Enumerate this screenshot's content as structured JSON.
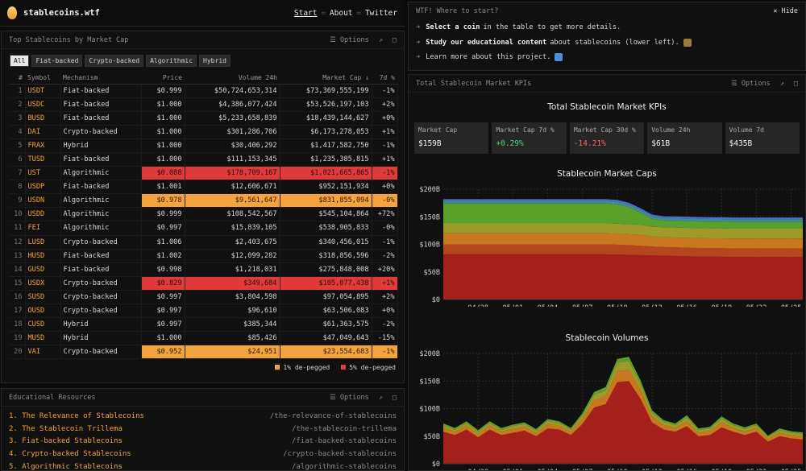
{
  "header": {
    "site": "stablecoins.wtf",
    "nav": [
      "Start",
      "About",
      "Twitter"
    ]
  },
  "table_pane": {
    "title": "Top Stablecoins by Market Cap",
    "options": "Options",
    "filters": [
      "All",
      "Fiat-backed",
      "Crypto-backed",
      "Algorithmic",
      "Hybrid"
    ],
    "columns": [
      "#",
      "Symbol",
      "Mechanism",
      "Price",
      "Volume 24h",
      "Market Cap ↓",
      "7d %"
    ],
    "rows": [
      {
        "n": "1",
        "sym": "USDT",
        "mech": "Fiat-backed",
        "price": "$0.999",
        "vol": "$50,724,653,314",
        "cap": "$73,369,555,199",
        "d7": "-1%",
        "flag": ""
      },
      {
        "n": "2",
        "sym": "USDC",
        "mech": "Fiat-backed",
        "price": "$1.000",
        "vol": "$4,386,077,424",
        "cap": "$53,526,197,103",
        "d7": "+2%",
        "flag": ""
      },
      {
        "n": "3",
        "sym": "BUSD",
        "mech": "Fiat-backed",
        "price": "$1.000",
        "vol": "$5,233,658,839",
        "cap": "$18,439,144,627",
        "d7": "+0%",
        "flag": ""
      },
      {
        "n": "4",
        "sym": "DAI",
        "mech": "Crypto-backed",
        "price": "$1.000",
        "vol": "$301,286,706",
        "cap": "$6,173,278,053",
        "d7": "+1%",
        "flag": ""
      },
      {
        "n": "5",
        "sym": "FRAX",
        "mech": "Hybrid",
        "price": "$1.000",
        "vol": "$30,406,292",
        "cap": "$1,417,582,750",
        "d7": "-1%",
        "flag": ""
      },
      {
        "n": "6",
        "sym": "TUSD",
        "mech": "Fiat-backed",
        "price": "$1.000",
        "vol": "$111,153,345",
        "cap": "$1,235,385,815",
        "d7": "+1%",
        "flag": ""
      },
      {
        "n": "7",
        "sym": "UST",
        "mech": "Algorithmic",
        "price": "$0.088",
        "vol": "$178,709,167",
        "cap": "$1,021,665,865",
        "d7": "-1%",
        "flag": "red"
      },
      {
        "n": "8",
        "sym": "USDP",
        "mech": "Fiat-backed",
        "price": "$1.001",
        "vol": "$12,606,671",
        "cap": "$952,151,934",
        "d7": "+0%",
        "flag": ""
      },
      {
        "n": "9",
        "sym": "USDN",
        "mech": "Algorithmic",
        "price": "$0.978",
        "vol": "$9,561,647",
        "cap": "$831,855,094",
        "d7": "-0%",
        "flag": "orange"
      },
      {
        "n": "10",
        "sym": "USDD",
        "mech": "Algorithmic",
        "price": "$0.999",
        "vol": "$108,542,567",
        "cap": "$545,104,864",
        "d7": "+72%",
        "flag": ""
      },
      {
        "n": "11",
        "sym": "FEI",
        "mech": "Algorithmic",
        "price": "$0.997",
        "vol": "$15,839,105",
        "cap": "$538,905,833",
        "d7": "-0%",
        "flag": ""
      },
      {
        "n": "12",
        "sym": "LUSD",
        "mech": "Crypto-backed",
        "price": "$1.006",
        "vol": "$2,403,675",
        "cap": "$340,456,015",
        "d7": "-1%",
        "flag": ""
      },
      {
        "n": "13",
        "sym": "HUSD",
        "mech": "Fiat-backed",
        "price": "$1.002",
        "vol": "$12,099,282",
        "cap": "$318,856,596",
        "d7": "-2%",
        "flag": ""
      },
      {
        "n": "14",
        "sym": "GUSD",
        "mech": "Fiat-backed",
        "price": "$0.998",
        "vol": "$1,218,031",
        "cap": "$275,848,008",
        "d7": "+20%",
        "flag": ""
      },
      {
        "n": "15",
        "sym": "USDX",
        "mech": "Crypto-backed",
        "price": "$0.829",
        "vol": "$349,684",
        "cap": "$105,077,438",
        "d7": "+1%",
        "flag": "red"
      },
      {
        "n": "16",
        "sym": "SUSD",
        "mech": "Crypto-backed",
        "price": "$0.997",
        "vol": "$3,804,598",
        "cap": "$97,054,895",
        "d7": "+2%",
        "flag": ""
      },
      {
        "n": "17",
        "sym": "OUSD",
        "mech": "Crypto-backed",
        "price": "$0.997",
        "vol": "$96,610",
        "cap": "$63,506,083",
        "d7": "+0%",
        "flag": ""
      },
      {
        "n": "18",
        "sym": "CUSD",
        "mech": "Hybrid",
        "price": "$0.997",
        "vol": "$385,344",
        "cap": "$61,363,575",
        "d7": "-2%",
        "flag": ""
      },
      {
        "n": "19",
        "sym": "MUSD",
        "mech": "Hybrid",
        "price": "$1.000",
        "vol": "$85,426",
        "cap": "$47,049,643",
        "d7": "-15%",
        "flag": ""
      },
      {
        "n": "20",
        "sym": "VAI",
        "mech": "Crypto-backed",
        "price": "$0.952",
        "vol": "$24,951",
        "cap": "$23,554,683",
        "d7": "-1%",
        "flag": "orange"
      }
    ],
    "legend": [
      {
        "label": "1% de-pegged",
        "color": "#f4a23b"
      },
      {
        "label": "5% de-pegged",
        "color": "#e03a3a"
      }
    ]
  },
  "edu_pane": {
    "title": "Educational Resources",
    "options": "Options",
    "items": [
      {
        "t": "1. The Relevance of Stablecoins",
        "p": "/the-relevance-of-stablecoins"
      },
      {
        "t": "2. The Stablecoin Trillema",
        "p": "/the-stablecoin-trillema"
      },
      {
        "t": "3. Fiat-backed Stablecoins",
        "p": "/fiat-backed-stablecoins"
      },
      {
        "t": "4. Crypto-backed Stablecoins",
        "p": "/crypto-backed-stablecoins"
      },
      {
        "t": "5. Algorithmic Stablecoins",
        "p": "/algorithmic-stablecoins"
      }
    ]
  },
  "help_pane": {
    "title": "WTF! Where to start?",
    "hide": "Hide",
    "lines": [
      {
        "pre": "Select a coin",
        "post": "in the table to get more details."
      },
      {
        "pre": "Study our educational content",
        "post": "about stablecoins (lower left)."
      },
      {
        "pre": "",
        "post": "Learn more about this project."
      }
    ]
  },
  "kpi_pane": {
    "header": "Total Stablecoin Market KPIs",
    "options": "Options",
    "title": "Total Stablecoin Market KPIs",
    "kpis": [
      {
        "label": "Market Cap",
        "value": "$159B",
        "tone": ""
      },
      {
        "label": "Market Cap 7d %",
        "value": "+0.29%",
        "tone": "pos"
      },
      {
        "label": "Market Cap 30d %",
        "value": "-14.21%",
        "tone": "neg"
      },
      {
        "label": "Volume 24h",
        "value": "$61B",
        "tone": ""
      },
      {
        "label": "Volume 7d",
        "value": "$435B",
        "tone": ""
      }
    ]
  },
  "chart_data": [
    {
      "type": "area",
      "title": "Stablecoin Market Caps",
      "x": [
        "04/25",
        "04/26",
        "04/27",
        "04/28",
        "04/29",
        "04/30",
        "05/01",
        "05/02",
        "05/03",
        "05/04",
        "05/05",
        "05/06",
        "05/07",
        "05/08",
        "05/09",
        "05/10",
        "05/11",
        "05/12",
        "05/13",
        "05/14",
        "05/15",
        "05/16",
        "05/17",
        "05/18",
        "05/19",
        "05/20",
        "05/21",
        "05/22",
        "05/23",
        "05/24",
        "05/25",
        "05/26"
      ],
      "xticks": [
        "04/28",
        "05/01",
        "05/04",
        "05/07",
        "05/10",
        "05/13",
        "05/16",
        "05/19",
        "05/22",
        "05/25"
      ],
      "yticks": [
        "$0",
        "$50B",
        "$100B",
        "$150B",
        "$200B"
      ],
      "ylim": [
        0,
        200
      ],
      "series": [
        {
          "color": "#a5201a",
          "values": [
            82,
            82,
            82,
            82,
            82,
            82,
            82,
            82,
            82,
            82,
            82,
            82,
            82,
            82,
            82,
            81.5,
            81,
            80.5,
            80,
            79.5,
            79,
            78.5,
            78,
            77.5,
            77.5,
            77,
            77,
            77,
            77,
            77,
            77,
            77
          ]
        },
        {
          "color": "#b5461e",
          "values": [
            18,
            18,
            18,
            18,
            18,
            18,
            18,
            18,
            18,
            18,
            18,
            18,
            18,
            18,
            18,
            18,
            17.5,
            17,
            16,
            15.5,
            15.5,
            15.5,
            15.5,
            15.5,
            15.5,
            15.5,
            15.5,
            15.5,
            15.5,
            15.5,
            15.5,
            15.5
          ]
        },
        {
          "color": "#c9781f",
          "values": [
            20,
            20,
            20,
            20,
            20,
            20,
            20,
            20,
            20,
            20,
            20,
            20,
            20,
            20,
            20,
            20,
            20,
            20,
            18,
            18,
            18,
            18,
            18,
            18,
            18,
            18,
            18,
            18,
            18,
            18,
            18,
            18
          ]
        },
        {
          "color": "#9e9a2a",
          "values": [
            18,
            18,
            18,
            18,
            18,
            18,
            18,
            18,
            18,
            18,
            18,
            18,
            18,
            18,
            18,
            18,
            18,
            18,
            18,
            18,
            18,
            18,
            18,
            18,
            18,
            18,
            18,
            18,
            18,
            18,
            18,
            18
          ]
        },
        {
          "color": "#5aa12b",
          "values": [
            36,
            36,
            36,
            36,
            36,
            36,
            36,
            36,
            36,
            36,
            36,
            36,
            36,
            36,
            36,
            35,
            31,
            22,
            14,
            12,
            12,
            12,
            12,
            12,
            12,
            12,
            12,
            12,
            12,
            12,
            12,
            12
          ]
        },
        {
          "color": "#3d8f8d",
          "values": [
            5,
            5,
            5,
            5,
            5,
            5,
            5,
            5,
            5,
            5,
            5,
            5,
            5,
            5,
            5,
            5,
            5,
            5,
            5,
            5,
            5,
            5,
            5,
            5,
            5,
            5,
            5,
            5,
            5,
            5,
            5,
            5
          ]
        },
        {
          "color": "#4a6fd6",
          "values": [
            3,
            3,
            3,
            3,
            3,
            3,
            3,
            3,
            3,
            3,
            3,
            3,
            3,
            3,
            3,
            3,
            3,
            3,
            3,
            3,
            3,
            3,
            3,
            3,
            3,
            3,
            3,
            3,
            3,
            3,
            3,
            3
          ]
        }
      ]
    },
    {
      "type": "area",
      "title": "Stablecoin Volumes",
      "x": [
        "04/25",
        "04/26",
        "04/27",
        "04/28",
        "04/29",
        "04/30",
        "05/01",
        "05/02",
        "05/03",
        "05/04",
        "05/05",
        "05/06",
        "05/07",
        "05/08",
        "05/09",
        "05/10",
        "05/11",
        "05/12",
        "05/13",
        "05/14",
        "05/15",
        "05/16",
        "05/17",
        "05/18",
        "05/19",
        "05/20",
        "05/21",
        "05/22",
        "05/23",
        "05/24",
        "05/25",
        "05/26"
      ],
      "xticks": [
        "04/28",
        "05/01",
        "05/04",
        "05/07",
        "05/10",
        "05/13",
        "05/16",
        "05/19",
        "05/22",
        "05/25"
      ],
      "yticks": [
        "$0",
        "$50B",
        "$100B",
        "$150B",
        "$200B"
      ],
      "ylim": [
        0,
        200
      ],
      "series": [
        {
          "color": "#a5201a",
          "values": [
            58,
            52,
            62,
            48,
            62,
            52,
            56,
            60,
            50,
            64,
            62,
            52,
            72,
            102,
            108,
            148,
            150,
            118,
            75,
            62,
            58,
            68,
            50,
            52,
            66,
            58,
            52,
            58,
            40,
            50,
            46,
            44
          ]
        },
        {
          "color": "#c9781f",
          "values": [
            7,
            6,
            7,
            6,
            7,
            6,
            7,
            7,
            6,
            8,
            7,
            6,
            9,
            13,
            14,
            20,
            20,
            16,
            10,
            8,
            7,
            9,
            6,
            7,
            9,
            7,
            6,
            7,
            5,
            6,
            6,
            6
          ]
        },
        {
          "color": "#9e9a2a",
          "values": [
            5,
            4,
            5,
            4,
            5,
            4,
            5,
            5,
            4,
            6,
            5,
            4,
            7,
            10,
            11,
            15,
            16,
            12,
            8,
            6,
            5,
            7,
            5,
            5,
            7,
            5,
            5,
            5,
            4,
            5,
            4,
            4
          ]
        },
        {
          "color": "#5aa12b",
          "values": [
            3,
            3,
            3,
            3,
            3,
            3,
            3,
            3,
            3,
            3,
            3,
            3,
            4,
            5,
            6,
            7,
            8,
            6,
            4,
            3,
            3,
            4,
            3,
            3,
            4,
            3,
            3,
            3,
            2,
            3,
            3,
            3
          ]
        }
      ]
    }
  ]
}
